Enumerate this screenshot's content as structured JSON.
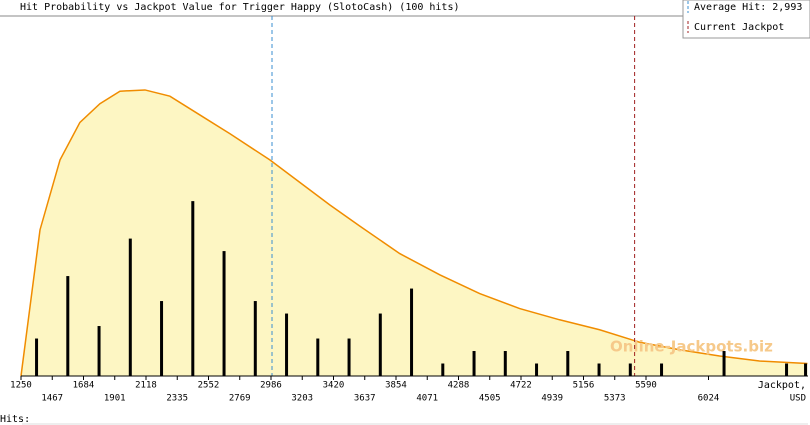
{
  "chart_data": {
    "type": "bar",
    "title": "Hit Probability vs Jackpot Value for Trigger Happy (SlotoCash) (100 hits)",
    "x_label": [
      "Jackpot,",
      "USD"
    ],
    "rug_label": "Hits:",
    "watermark": "Online-Jackpots.biz",
    "x": [
      1358,
      1575,
      1792,
      2009,
      2226,
      2443,
      2660,
      2877,
      3094,
      3311,
      3528,
      3745,
      3962,
      4179,
      4396,
      4613,
      4830,
      5047,
      5264,
      5481,
      5698,
      6132,
      6566,
      6698
    ],
    "values": [
      3,
      8,
      4,
      11,
      6,
      14,
      10,
      6,
      5,
      3,
      3,
      5,
      7,
      1,
      2,
      2,
      1,
      2,
      1,
      1,
      1,
      2,
      1,
      1
    ],
    "color": "#000000",
    "curve": {
      "color": "#f08c00",
      "fill": "#fdf6c3",
      "x": [
        1250,
        1382,
        1521,
        1659,
        1798,
        1937,
        2111,
        2284,
        2492,
        2700,
        2978,
        3186,
        3394,
        3603,
        3880,
        4158,
        4435,
        4713,
        4990,
        5268,
        5546,
        5823,
        6101,
        6378,
        6711
      ],
      "values": [
        0,
        11.7,
        17.3,
        20.3,
        21.8,
        22.8,
        22.9,
        22.4,
        20.9,
        19.4,
        17.3,
        15.5,
        13.7,
        12.0,
        9.8,
        8.1,
        6.6,
        5.4,
        4.5,
        3.7,
        2.7,
        2.1,
        1.6,
        1.2,
        1.0
      ]
    },
    "average_hit": {
      "label": "Average Hit: 2,993",
      "value": 2993,
      "color": "#3a8fd0"
    },
    "current_jackpot": {
      "label": "Current Jackpot",
      "value": 5511,
      "color": "#a02020"
    },
    "xlim": [
      1250,
      6715
    ],
    "ylim": [
      0,
      28.5
    ],
    "xticks": [
      1250,
      1467,
      1684,
      1901,
      2118,
      2335,
      2552,
      2769,
      2986,
      3203,
      3420,
      3637,
      3854,
      4071,
      4288,
      4505,
      4722,
      4939,
      5156,
      5373,
      5590,
      6024
    ]
  }
}
